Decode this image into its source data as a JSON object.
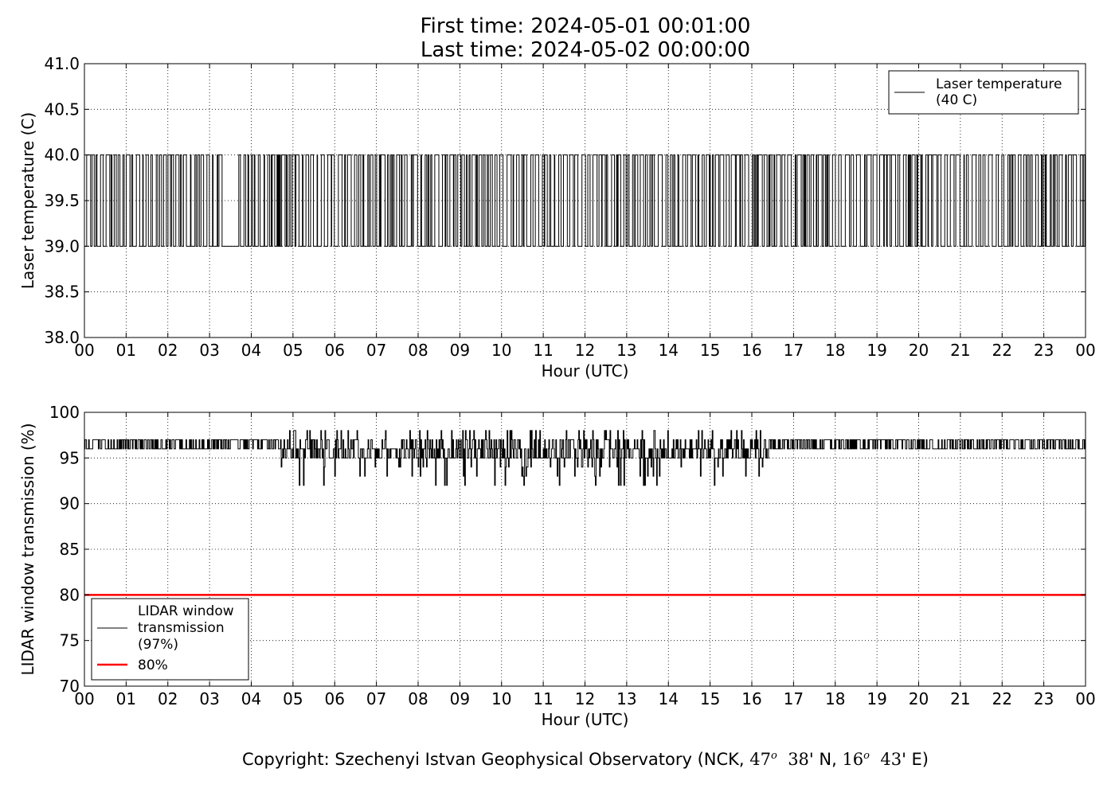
{
  "header": {
    "line1": "First time: 2024-05-01 00:01:00",
    "line2": "Last time: 2024-05-02 00:00:00"
  },
  "footer": {
    "prefix": "Copyright: Szechenyi Istvan Geophysical Observatory (NCK, ",
    "lat_deg": "47",
    "lat_min": "38",
    "lat_suffix": "' N, ",
    "lon_deg": "16",
    "lon_min": "43",
    "lon_suffix": "' E)",
    "degree_mark": "o"
  },
  "chart_data": [
    {
      "type": "line",
      "xlabel": "Hour (UTC)",
      "ylabel": "Laser temperature (C)",
      "xlim": [
        0,
        24
      ],
      "ylim": [
        38.0,
        41.0
      ],
      "xticks": [
        "00",
        "01",
        "02",
        "03",
        "04",
        "05",
        "06",
        "07",
        "08",
        "09",
        "10",
        "11",
        "12",
        "13",
        "14",
        "15",
        "16",
        "17",
        "18",
        "19",
        "20",
        "21",
        "22",
        "23",
        "00"
      ],
      "yticks": [
        "38.0",
        "38.5",
        "39.0",
        "39.5",
        "40.0",
        "40.5",
        "41.0"
      ],
      "grid": true,
      "legend_position": "top-right",
      "series": [
        {
          "name": "Laser temperature\n(40 C)",
          "color": "#000000",
          "description": "values alternate between 39.0 and 40.0, sampled every minute",
          "levels": [
            39.0,
            40.0
          ],
          "gaps": [
            [
              3.3,
              3.65
            ]
          ]
        }
      ]
    },
    {
      "type": "line",
      "xlabel": "Hour (UTC)",
      "ylabel": "LIDAR window transmission (%)",
      "xlim": [
        0,
        24
      ],
      "ylim": [
        70,
        100
      ],
      "xticks": [
        "00",
        "01",
        "02",
        "03",
        "04",
        "05",
        "06",
        "07",
        "08",
        "09",
        "10",
        "11",
        "12",
        "13",
        "14",
        "15",
        "16",
        "17",
        "18",
        "19",
        "20",
        "21",
        "22",
        "23",
        "00"
      ],
      "yticks": [
        "70",
        "75",
        "80",
        "85",
        "90",
        "95",
        "100"
      ],
      "grid": true,
      "legend_position": "lower-left",
      "series": [
        {
          "name": "LIDAR window\ntransmission\n(97%)",
          "color": "#000000",
          "baseline_levels": [
            96,
            97
          ],
          "disturbed_range": [
            4.7,
            16.4
          ],
          "min_value": 92,
          "max_value": 98
        },
        {
          "name": "80%",
          "color": "#ff0000",
          "values": [
            80,
            80
          ],
          "x": [
            0,
            24
          ]
        }
      ]
    }
  ]
}
